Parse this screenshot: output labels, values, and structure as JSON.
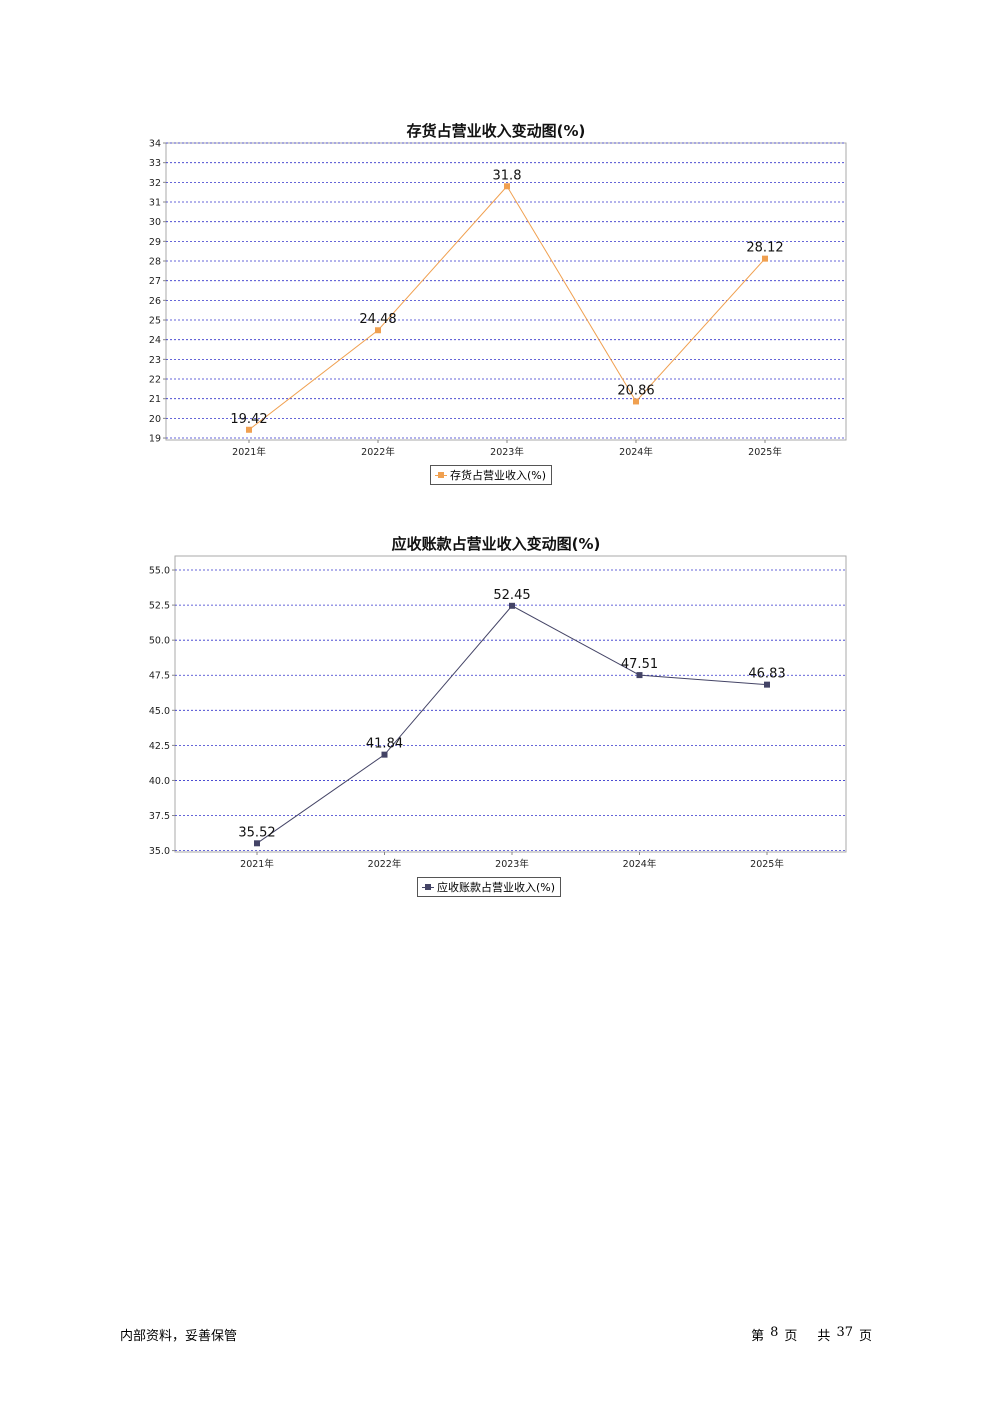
{
  "chart_data": [
    {
      "type": "line",
      "title": "存货占营业收入变动图(%)",
      "xlabel": "",
      "ylabel": "",
      "categories": [
        "2021年",
        "2022年",
        "2023年",
        "2024年",
        "2025年"
      ],
      "series": [
        {
          "name": "存货占营业收入(%)",
          "values": [
            19.42,
            24.48,
            31.8,
            20.86,
            28.12
          ],
          "color": "#f0a050"
        }
      ],
      "y_ticks": [
        "19",
        "20",
        "21",
        "22",
        "23",
        "24",
        "25",
        "26",
        "27",
        "28",
        "29",
        "30",
        "31",
        "32",
        "33",
        "34"
      ],
      "ylim": [
        18.9,
        34.0
      ],
      "grid": true,
      "grid_color": "#3333cc",
      "legend_position": "bottom-center"
    },
    {
      "type": "line",
      "title": "应收账款占营业收入变动图(%)",
      "xlabel": "",
      "ylabel": "",
      "categories": [
        "2021年",
        "2022年",
        "2023年",
        "2024年",
        "2025年"
      ],
      "series": [
        {
          "name": "应收账款占营业收入(%)",
          "values": [
            35.52,
            41.84,
            52.45,
            47.51,
            46.83
          ],
          "color": "#444466"
        }
      ],
      "y_ticks": [
        "35.0",
        "37.5",
        "40.0",
        "42.5",
        "45.0",
        "47.5",
        "50.0",
        "52.5",
        "55.0"
      ],
      "ylim": [
        34.9,
        56.0
      ],
      "grid": true,
      "grid_color": "#3333cc",
      "legend_position": "bottom-center"
    }
  ],
  "footer": {
    "left": "内部资料，妥善保管",
    "page_prefix": "第",
    "page_number": "8",
    "page_suffix": "页",
    "total_prefix": "共",
    "total_pages": "37",
    "total_suffix": "页"
  }
}
